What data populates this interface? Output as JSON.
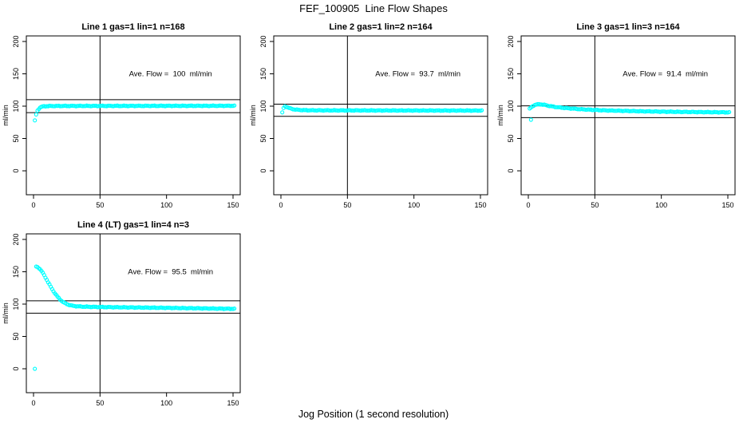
{
  "figure": {
    "title": "FEF_100905  Line Flow Shapes",
    "xlabel": "Jog Position (1 second resolution)",
    "ylabel": "ml/min",
    "background_color": "#ffffff",
    "marker_color": "#00ffff",
    "axis_color": "#000000",
    "xticks": [
      0,
      50,
      100,
      150
    ],
    "yticks": [
      0,
      50,
      100,
      150,
      200
    ],
    "xlim": [
      -5.4,
      155.4
    ],
    "ylim": [
      -37.0,
      208.6
    ],
    "vline_x": 50,
    "grid": false,
    "legend": "none"
  },
  "chart_data": [
    {
      "type": "scatter",
      "title": "Line 1 gas=1 lin=1 n=168",
      "annotation": "Ave. Flow =  100  ml/min",
      "ave_flow": 100,
      "n": 168,
      "hlines": [
        110,
        90
      ],
      "vline_x": 50,
      "outliers": [
        [
          1,
          78
        ]
      ],
      "x_step": 1,
      "shape_points": [
        [
          2,
          87
        ],
        [
          3,
          93
        ],
        [
          4,
          96
        ],
        [
          5,
          98
        ],
        [
          6,
          99
        ],
        [
          8,
          99.8
        ],
        [
          12,
          100.2
        ],
        [
          20,
          100.3
        ],
        [
          50,
          100.4
        ],
        [
          100,
          100.5
        ],
        [
          151,
          100.6
        ]
      ]
    },
    {
      "type": "scatter",
      "title": "Line 2 gas=1 lin=2 n=164",
      "annotation": "Ave. Flow =  93.7  ml/min",
      "ave_flow": 93.7,
      "n": 164,
      "hlines": [
        103.1,
        84.3
      ],
      "vline_x": 50,
      "outliers": [],
      "x_step": 1,
      "shape_points": [
        [
          1,
          90
        ],
        [
          2,
          97
        ],
        [
          3,
          99.8
        ],
        [
          4,
          99.2
        ],
        [
          5,
          98.3
        ],
        [
          6,
          97.3
        ],
        [
          8,
          95.9
        ],
        [
          10,
          95
        ],
        [
          13,
          94.3
        ],
        [
          16,
          93.9
        ],
        [
          20,
          93.7
        ],
        [
          30,
          93.5
        ],
        [
          60,
          93.4
        ],
        [
          100,
          93.3
        ],
        [
          151,
          93.2
        ]
      ]
    },
    {
      "type": "scatter",
      "title": "Line 3 gas=1 lin=3 n=164",
      "annotation": "Ave. Flow =  91.4  ml/min",
      "ave_flow": 91.4,
      "n": 164,
      "hlines": [
        100.5,
        82.3
      ],
      "vline_x": 50,
      "outliers": [
        [
          2,
          79
        ]
      ],
      "x_step": 1,
      "shape_points": [
        [
          1,
          96
        ],
        [
          3,
          99.5
        ],
        [
          4,
          101
        ],
        [
          5,
          102
        ],
        [
          7,
          102.8
        ],
        [
          9,
          103
        ],
        [
          12,
          102
        ],
        [
          15,
          100.7
        ],
        [
          20,
          98.9
        ],
        [
          25,
          97.7
        ],
        [
          30,
          96.7
        ],
        [
          40,
          95.2
        ],
        [
          50,
          94.1
        ],
        [
          60,
          93.3
        ],
        [
          80,
          92.3
        ],
        [
          100,
          91.5
        ],
        [
          120,
          91
        ],
        [
          140,
          90.6
        ],
        [
          151,
          90.4
        ]
      ]
    },
    {
      "type": "scatter",
      "title": "Line 4 (LT) gas=1 lin=4 n=3",
      "annotation": "Ave. Flow =  95.5  ml/min",
      "ave_flow": 95.5,
      "n": 3,
      "hlines": [
        105.1,
        86
      ],
      "vline_x": 50,
      "outliers": [
        [
          1,
          0
        ]
      ],
      "x_step": 1,
      "shape_points": [
        [
          2,
          158
        ],
        [
          3,
          157.2
        ],
        [
          4,
          155.8
        ],
        [
          5,
          153.8
        ],
        [
          6,
          151.2
        ],
        [
          7,
          148.2
        ],
        [
          8,
          144.8
        ],
        [
          9,
          141.2
        ],
        [
          10,
          137.5
        ],
        [
          11,
          133.8
        ],
        [
          12,
          130.2
        ],
        [
          13,
          126.6
        ],
        [
          14,
          123.2
        ],
        [
          15,
          120
        ],
        [
          16,
          117
        ],
        [
          17,
          114.2
        ],
        [
          18,
          111.6
        ],
        [
          19,
          109.2
        ],
        [
          20,
          107
        ],
        [
          22,
          103.6
        ],
        [
          24,
          101
        ],
        [
          26,
          99.2
        ],
        [
          28,
          98
        ],
        [
          30,
          97.2
        ],
        [
          35,
          96.3
        ],
        [
          40,
          95.9
        ],
        [
          50,
          95.5
        ],
        [
          60,
          95.2
        ],
        [
          80,
          94.7
        ],
        [
          100,
          94.2
        ],
        [
          120,
          93.6
        ],
        [
          140,
          93
        ],
        [
          151,
          92.7
        ]
      ]
    }
  ]
}
